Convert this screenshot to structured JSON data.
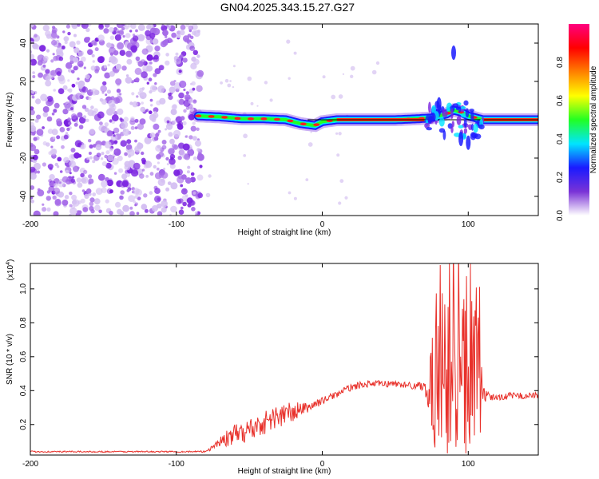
{
  "title": "GN04.2025.343.15.27.G27",
  "chart_data": [
    {
      "type": "heatmap",
      "title": "GN04.2025.343.15.27.G27",
      "xlabel": "Height of straight line (km)",
      "ylabel": "Frequency (Hz)",
      "xlim": [
        -200,
        148
      ],
      "ylim": [
        -50,
        50
      ],
      "xticks": [
        -200,
        -100,
        0,
        100
      ],
      "xtick_labels": [
        "-200",
        "-100",
        "0",
        "100"
      ],
      "yticks": [
        -40,
        -20,
        0,
        20,
        40
      ],
      "ytick_labels": [
        "-40",
        "-20",
        "0",
        "20",
        "40"
      ],
      "colorbar": {
        "label": "Normalized spectral amplitude",
        "range": [
          0,
          1
        ],
        "ticks": [
          0,
          0.2,
          0.4,
          0.6,
          0.8
        ],
        "tick_labels": [
          "0.0",
          "0.2",
          "0.4",
          "0.6",
          "0.8"
        ],
        "colormap": [
          "#ffffff",
          "#7a33d6",
          "#1a1aff",
          "#00e5ff",
          "#22ff22",
          "#ffff00",
          "#ff8000",
          "#ff0000",
          "#ff0080"
        ]
      },
      "noise_region_x": [
        -200,
        -83
      ],
      "signal_band": {
        "x": [
          -85,
          -70,
          -55,
          -40,
          -25,
          -15,
          -5,
          0,
          10,
          30,
          50,
          65,
          75,
          85,
          90,
          95,
          100,
          110,
          125,
          148
        ],
        "freq": [
          2,
          1.5,
          0.5,
          0.5,
          0,
          -2,
          -3,
          -1,
          0,
          0,
          0,
          0.5,
          1,
          3,
          5,
          4,
          2,
          0,
          0,
          0
        ]
      },
      "feature_spots": [
        {
          "x": 90,
          "freq": 35
        },
        {
          "x": 95,
          "freq": -10
        },
        {
          "x": 80,
          "freq": 8
        },
        {
          "x": 100,
          "freq": -12
        }
      ]
    },
    {
      "type": "line",
      "xlabel": "Height of straight line (km)",
      "ylabel": "SNR (10 * v/v)",
      "y_multiplier": "(x10",
      "y_multiplier_exp": "4",
      "y_multiplier_close": ")",
      "xlim": [
        -200,
        148
      ],
      "ylim": [
        0.02,
        1.15
      ],
      "xticks": [
        -200,
        -100,
        0,
        100
      ],
      "xtick_labels": [
        "-200",
        "-100",
        "0",
        "100"
      ],
      "yticks": [
        0.2,
        0.4,
        0.6,
        0.8,
        1.0
      ],
      "ytick_labels": [
        "0.2",
        "0.4",
        "0.6",
        "0.8",
        "1.0"
      ],
      "series": [
        {
          "name": "SNR",
          "color": "#e8302a",
          "x": [
            -200,
            -150,
            -100,
            -80,
            -75,
            -70,
            -65,
            -60,
            -55,
            -50,
            -45,
            -40,
            -35,
            -30,
            -25,
            -20,
            -15,
            -10,
            -5,
            0,
            5,
            10,
            15,
            20,
            30,
            40,
            50,
            60,
            70,
            72,
            75,
            80,
            85,
            90,
            95,
            100,
            105,
            108,
            110,
            115,
            120,
            130,
            140,
            148
          ],
          "y": [
            0.04,
            0.04,
            0.04,
            0.04,
            0.07,
            0.1,
            0.12,
            0.14,
            0.15,
            0.17,
            0.19,
            0.21,
            0.23,
            0.25,
            0.26,
            0.27,
            0.29,
            0.3,
            0.32,
            0.34,
            0.36,
            0.38,
            0.4,
            0.42,
            0.44,
            0.44,
            0.44,
            0.43,
            0.43,
            0.4,
            0.35,
            0.45,
            0.5,
            0.55,
            0.45,
            0.5,
            0.55,
            0.45,
            0.37,
            0.36,
            0.36,
            0.37,
            0.37,
            0.37
          ],
          "noise_amp": [
            0.004,
            0.004,
            0.004,
            0.005,
            0.02,
            0.03,
            0.05,
            0.06,
            0.06,
            0.07,
            0.07,
            0.07,
            0.07,
            0.07,
            0.07,
            0.07,
            0.04,
            0.03,
            0.03,
            0.02,
            0.02,
            0.02,
            0.02,
            0.02,
            0.02,
            0.02,
            0.02,
            0.02,
            0.03,
            0.1,
            0.3,
            0.45,
            0.5,
            0.5,
            0.5,
            0.5,
            0.45,
            0.35,
            0.05,
            0.02,
            0.02,
            0.02,
            0.02,
            0.02
          ]
        }
      ]
    }
  ]
}
